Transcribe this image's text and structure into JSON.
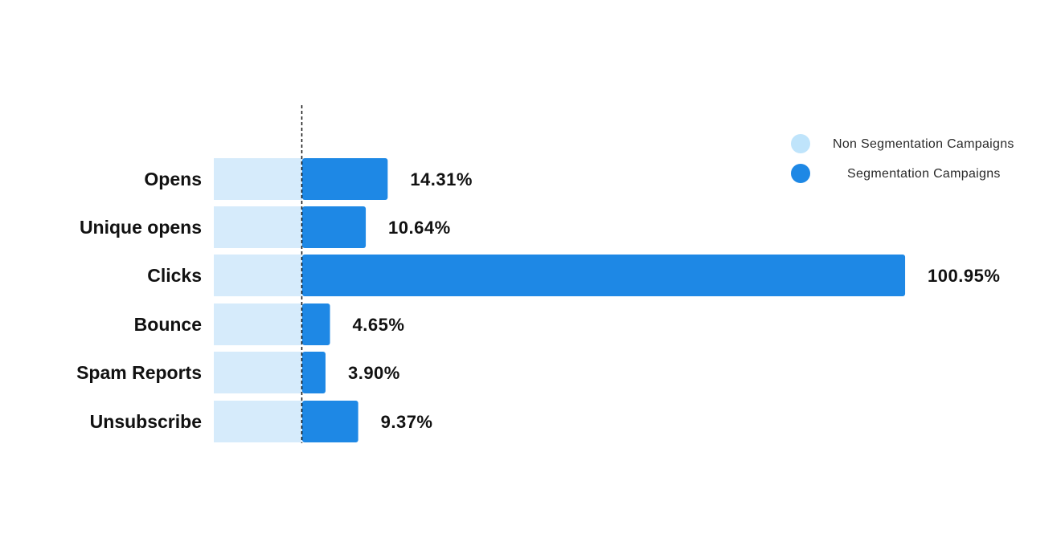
{
  "chart_data": {
    "type": "bar",
    "orientation": "horizontal",
    "categories": [
      "Opens",
      "Unique opens",
      "Clicks",
      "Bounce",
      "Spam Reports",
      "Unsubscribe"
    ],
    "series": [
      {
        "name": "Non Segmentation Campaigns",
        "values": [
          0,
          0,
          0,
          0,
          0,
          0
        ],
        "color": "#d6ebfb"
      },
      {
        "name": "Segmentation Campaigns",
        "values": [
          14.31,
          10.64,
          100.95,
          4.65,
          3.9,
          9.37
        ],
        "color": "#1e88e5"
      }
    ],
    "value_labels": [
      "14.31%",
      "10.64%",
      "100.95%",
      "4.65%",
      "3.90%",
      "9.37%"
    ],
    "title": "",
    "xlabel": "",
    "ylabel": "",
    "legend": {
      "position": "top-right",
      "entries": [
        {
          "label": "Non Segmentation Campaigns",
          "color": "#bfe4fb"
        },
        {
          "label": "Segmentation Campaigns",
          "color": "#1e88e5"
        }
      ]
    },
    "baseline": "dashed",
    "grid": false
  }
}
